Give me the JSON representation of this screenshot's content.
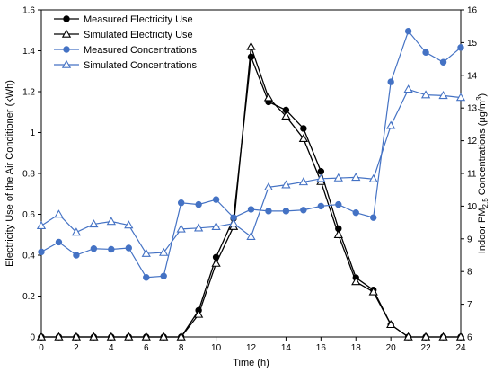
{
  "chart_data": {
    "type": "line",
    "xlabel": "Time (h)",
    "ylabel_left": "Electricity Use of the Air Conditioner (kWh)",
    "ylabel_right": {
      "prefix": "Indoor PM",
      "subscript": "2.5",
      "middle": " Concentrations (μg/m",
      "superscript": "3",
      "suffix": ")"
    },
    "xlim": [
      0,
      24
    ],
    "ylim_left": [
      0,
      1.6
    ],
    "ylim_right": [
      6,
      16
    ],
    "x_ticks": [
      0,
      2,
      4,
      6,
      8,
      10,
      12,
      14,
      16,
      18,
      20,
      22,
      24
    ],
    "y_left_ticks": [
      "0",
      "0.2",
      "0.4",
      "0.6",
      "0.8",
      "1",
      "1.2",
      "1.4",
      "1.6"
    ],
    "y_right_ticks": [
      "6",
      "7",
      "8",
      "9",
      "10",
      "11",
      "12",
      "13",
      "14",
      "15",
      "16"
    ],
    "legend_position": "top-left",
    "series": [
      {
        "name": "Measured Electricity Use",
        "axis": "left",
        "color": "#000000",
        "marker": "filled-circle",
        "x": [
          0,
          1,
          2,
          3,
          4,
          5,
          6,
          7,
          8,
          9,
          10,
          11,
          12,
          13,
          14,
          15,
          16,
          17,
          18,
          19,
          20,
          21,
          22,
          23,
          24
        ],
        "values": [
          0,
          0,
          0,
          0,
          0,
          0,
          0,
          0,
          0,
          0.13,
          0.39,
          0.58,
          1.37,
          1.15,
          1.11,
          1.02,
          0.81,
          0.53,
          0.29,
          0.23,
          0.06,
          0,
          0,
          0,
          0
        ]
      },
      {
        "name": "Simulated Electricity Use",
        "axis": "left",
        "color": "#000000",
        "marker": "open-triangle",
        "x": [
          0,
          1,
          2,
          3,
          4,
          5,
          6,
          7,
          8,
          9,
          10,
          11,
          12,
          13,
          14,
          15,
          16,
          17,
          18,
          19,
          20,
          21,
          22,
          23,
          24
        ],
        "values": [
          0,
          0,
          0,
          0,
          0,
          0,
          0,
          0,
          0,
          0.11,
          0.36,
          0.54,
          1.42,
          1.17,
          1.08,
          0.97,
          0.76,
          0.5,
          0.27,
          0.22,
          0.06,
          0,
          0,
          0,
          0
        ]
      },
      {
        "name": "Measured Concentrations",
        "axis": "right",
        "color": "#4472C4",
        "marker": "filled-circle",
        "x": [
          0,
          1,
          2,
          3,
          4,
          5,
          6,
          7,
          8,
          9,
          10,
          11,
          12,
          13,
          14,
          15,
          16,
          17,
          18,
          19,
          20,
          21,
          22,
          23,
          24
        ],
        "values": [
          8.6,
          8.9,
          8.5,
          8.7,
          8.68,
          8.72,
          7.82,
          7.86,
          10.1,
          10.05,
          10.2,
          9.65,
          9.9,
          9.85,
          9.85,
          9.88,
          10.0,
          10.05,
          9.8,
          9.65,
          13.8,
          15.35,
          14.7,
          14.4,
          14.85
        ]
      },
      {
        "name": "Simulated Concentrations",
        "axis": "right",
        "color": "#4472C4",
        "marker": "open-triangle",
        "x": [
          0,
          1,
          2,
          3,
          4,
          5,
          6,
          7,
          8,
          9,
          10,
          11,
          12,
          13,
          14,
          15,
          16,
          17,
          18,
          19,
          20,
          21,
          22,
          23,
          24
        ],
        "values": [
          9.4,
          9.75,
          9.2,
          9.45,
          9.53,
          9.42,
          8.55,
          8.58,
          9.3,
          9.33,
          9.37,
          9.47,
          9.07,
          10.58,
          10.65,
          10.74,
          10.84,
          10.86,
          10.88,
          10.83,
          12.46,
          13.57,
          13.4,
          13.38,
          13.32
        ]
      }
    ]
  }
}
